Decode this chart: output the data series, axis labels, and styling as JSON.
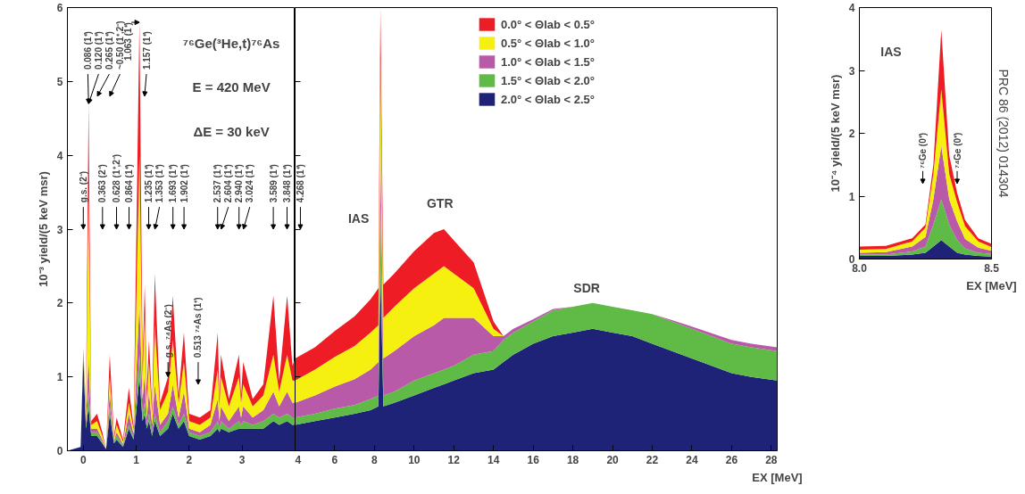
{
  "chart_data": [
    {
      "type": "area",
      "stacked": true,
      "ylabel": "10⁻³ yield/(5 keV msr)",
      "xlim": [
        -0.3,
        4
      ],
      "xticks": [
        0,
        1,
        2,
        3
      ],
      "ylim": [
        0,
        6
      ],
      "yticks": [
        0,
        1,
        2,
        3,
        4,
        5,
        6
      ],
      "x": [
        -0.3,
        -0.05,
        0,
        0.05,
        0.1,
        0.15,
        0.26,
        0.36,
        0.43,
        0.5,
        0.58,
        0.63,
        0.75,
        0.86,
        0.95,
        1.06,
        1.12,
        1.16,
        1.2,
        1.24,
        1.3,
        1.35,
        1.45,
        1.6,
        1.69,
        1.8,
        1.9,
        2.0,
        2.2,
        2.4,
        2.54,
        2.57,
        2.6,
        2.75,
        2.94,
        2.98,
        3.02,
        3.2,
        3.4,
        3.59,
        3.7,
        3.85,
        3.95,
        4.0
      ],
      "series": [
        {
          "color": "#1e2378",
          "values": [
            0,
            0.05,
            1.3,
            0.3,
            0.6,
            0.2,
            0.2,
            0.1,
            0.02,
            0.5,
            0.1,
            0.15,
            0.05,
            0.3,
            0.15,
            1.0,
            0.4,
            0.5,
            0.3,
            0.4,
            0.2,
            0.4,
            0.2,
            0.3,
            0.5,
            0.3,
            0.4,
            0.2,
            0.15,
            0.2,
            0.3,
            0.25,
            0.3,
            0.25,
            0.3,
            0.3,
            0.3,
            0.3,
            0.3,
            0.4,
            0.35,
            0.4,
            0.35,
            0.35
          ]
        },
        {
          "color": "#5fba46",
          "values": [
            0,
            0,
            0.1,
            0.05,
            0.2,
            0.05,
            0.05,
            0.02,
            0,
            0.1,
            0.02,
            0.05,
            0.02,
            0.05,
            0.03,
            0.3,
            0.1,
            0.15,
            0.05,
            0.1,
            0.05,
            0.1,
            0.05,
            0.1,
            0.1,
            0.05,
            0.1,
            0.05,
            0.05,
            0.05,
            0.1,
            0.05,
            0.1,
            0.05,
            0.1,
            0.05,
            0.1,
            0.05,
            0.1,
            0.1,
            0.1,
            0.1,
            0.1,
            0.1
          ]
        },
        {
          "color": "#b85aa8",
          "values": [
            0,
            0,
            0,
            0.05,
            0.5,
            0.05,
            0.05,
            0.03,
            0,
            0.2,
            0.02,
            0.05,
            0.02,
            0.15,
            0.05,
            0.7,
            0.2,
            0.4,
            0.1,
            0.3,
            0.1,
            0.4,
            0.1,
            0.1,
            0.3,
            0.1,
            0.3,
            0.05,
            0.05,
            0.1,
            0.3,
            0.1,
            0.2,
            0.1,
            0.2,
            0.1,
            0.2,
            0.1,
            0.15,
            0.3,
            0.15,
            0.3,
            0.2,
            0.2
          ]
        },
        {
          "color": "#f5f00f",
          "values": [
            0,
            0,
            0,
            0.1,
            2.2,
            0.05,
            0.1,
            0.05,
            0,
            0.2,
            0.03,
            0.1,
            0.03,
            0.15,
            0.05,
            2.0,
            0.3,
            0.8,
            0.2,
            0.4,
            0.15,
            0.8,
            0.2,
            0.3,
            0.6,
            0.2,
            0.4,
            0.1,
            0.1,
            0.1,
            0.4,
            0.2,
            0.4,
            0.2,
            0.4,
            0.2,
            0.3,
            0.15,
            0.2,
            0.5,
            0.2,
            0.5,
            0.3,
            0.3
          ]
        },
        {
          "color": "#ee1c24",
          "values": [
            0,
            0,
            0,
            0.1,
            1.2,
            0.05,
            0.1,
            0.05,
            0,
            0.3,
            0.03,
            0.1,
            0.03,
            0.2,
            0.05,
            1.8,
            0.2,
            0.4,
            0.2,
            0.3,
            0.1,
            0.7,
            0.1,
            0.2,
            0.6,
            0.1,
            0.4,
            0.1,
            0.1,
            0.1,
            0.5,
            0.1,
            0.3,
            0.1,
            0.3,
            0.1,
            0.3,
            0.1,
            0.15,
            0.8,
            0.15,
            0.8,
            0.2,
            0.3
          ]
        }
      ],
      "annotations": [
        "g.s. (2⁻)",
        {
          "text": "0.086 (1⁺)",
          "x": 0.1,
          "y": 4.7
        },
        {
          "text": "0.120 (1⁺)",
          "x": 0.1,
          "y": 4.7
        },
        "0.265 (1⁺)",
        "0.363 (2⁻)",
        "~0.50 (1⁺,2⁻)",
        "0.628 (1⁺,2⁻)",
        "0.864 (1⁺)",
        {
          "text": "1.063 (1⁺)",
          "x": 1.06,
          "y": 5.8
        },
        "1.157 (1⁺)",
        "1.235 (1⁺)",
        "1.353 (1⁺)",
        "1.693 (1⁺)",
        "1.902 (1⁺)",
        "2.537 (1⁺)",
        "2.604 (1⁺)",
        "2.940 (1⁺)",
        "3.024 (1⁺)",
        "3.589 (1⁺)",
        "3.848 (1⁺)",
        {
          "text": "g.s. ⁷⁴As (2⁻)",
          "x": 1.6,
          "y": 1.0
        },
        "0.513 ⁷⁴As (1⁺)",
        "⁷⁶Ge(³He,t)⁷⁶As",
        "E = 420 MeV",
        "ΔE = 30 keV"
      ]
    },
    {
      "type": "area",
      "stacked": true,
      "xlabel": "EX [MeV]",
      "xlim": [
        4,
        28.3
      ],
      "xticks": [
        4,
        6,
        8,
        10,
        12,
        14,
        16,
        18,
        20,
        22,
        24,
        26,
        28
      ],
      "ylim": [
        0,
        6
      ],
      "yticks": [
        0,
        1,
        2,
        3,
        4,
        5,
        6
      ],
      "tick_labels": "x",
      "legend": "top",
      "x": [
        4,
        5,
        6,
        7,
        7.8,
        8.2,
        8.3,
        8.45,
        9,
        10,
        11,
        11.5,
        12,
        13,
        14,
        14.5,
        15,
        16,
        17,
        18,
        19,
        20,
        21,
        22,
        23,
        24,
        25,
        26,
        27,
        28.3
      ],
      "series": [
        {
          "name": "2.0° < Θlab < 2.5°",
          "color": "#1e2378",
          "values": [
            0.35,
            0.4,
            0.45,
            0.5,
            0.55,
            0.6,
            2.5,
            0.6,
            0.65,
            0.75,
            0.85,
            0.9,
            0.95,
            1.05,
            1.1,
            1.2,
            1.3,
            1.45,
            1.55,
            1.6,
            1.65,
            1.6,
            1.55,
            1.45,
            1.35,
            1.25,
            1.15,
            1.05,
            1.0,
            0.95
          ]
        },
        {
          "name": "1.5° < Θlab < 2.0°",
          "color": "#5fba46",
          "values": [
            0.1,
            0.1,
            0.12,
            0.12,
            0.15,
            0.15,
            0.8,
            0.15,
            0.15,
            0.2,
            0.2,
            0.2,
            0.2,
            0.25,
            0.25,
            0.3,
            0.3,
            0.3,
            0.35,
            0.35,
            0.35,
            0.35,
            0.35,
            0.4,
            0.4,
            0.4,
            0.4,
            0.4,
            0.4,
            0.4
          ]
        },
        {
          "name": "1.0° < Θlab < 1.5°",
          "color": "#b85aa8",
          "values": [
            0.2,
            0.25,
            0.3,
            0.35,
            0.4,
            0.45,
            0.8,
            0.5,
            0.55,
            0.6,
            0.65,
            0.7,
            0.65,
            0.5,
            0.2,
            0.05,
            0.05,
            0.03,
            0.02,
            0,
            0,
            0,
            0,
            0,
            0.02,
            0.03,
            0.04,
            0.05,
            0.05,
            0.05
          ]
        },
        {
          "name": "0.5° < Θlab < 1.0°",
          "color": "#f5f00f",
          "values": [
            0.3,
            0.35,
            0.4,
            0.45,
            0.5,
            0.5,
            1.2,
            0.55,
            0.6,
            0.65,
            0.7,
            0.7,
            0.6,
            0.4,
            0.1,
            0,
            0,
            0,
            0,
            0,
            0,
            0,
            0,
            0,
            0,
            0,
            0,
            0,
            0,
            0
          ]
        },
        {
          "name": "0.0° < Θlab < 0.5°",
          "color": "#ee1c24",
          "values": [
            0.3,
            0.3,
            0.35,
            0.4,
            0.45,
            0.5,
            0.7,
            0.45,
            0.45,
            0.5,
            0.55,
            0.5,
            0.45,
            0.35,
            0.1,
            0,
            0,
            0,
            0,
            0,
            0,
            0,
            0,
            0,
            0,
            0,
            0,
            0,
            0,
            0
          ]
        }
      ],
      "annotations": [
        "4.268 (1⁺)",
        "IAS",
        "GTR",
        "SDR"
      ]
    },
    {
      "type": "area",
      "stacked": true,
      "xlabel": "EX [MeV]",
      "ylabel": "10⁻⁴ yield/(5 keV msr)",
      "xlim": [
        8.0,
        8.5
      ],
      "xticks": [
        {
          "value": 8,
          "label": "8.0"
        },
        8.5
      ],
      "ylim": [
        0,
        4
      ],
      "yticks": [
        0,
        1,
        2,
        3,
        4
      ],
      "x": [
        8.0,
        8.1,
        8.2,
        8.25,
        8.28,
        8.31,
        8.34,
        8.37,
        8.4,
        8.45,
        8.5
      ],
      "series": [
        {
          "color": "#1e2378",
          "values": [
            0.05,
            0.05,
            0.07,
            0.1,
            0.2,
            0.3,
            0.2,
            0.1,
            0.07,
            0.05,
            0.04
          ]
        },
        {
          "color": "#5fba46",
          "values": [
            0.02,
            0.02,
            0.05,
            0.1,
            0.35,
            0.65,
            0.35,
            0.2,
            0.1,
            0.05,
            0.04
          ]
        },
        {
          "color": "#b85aa8",
          "values": [
            0.03,
            0.04,
            0.08,
            0.15,
            0.4,
            0.85,
            0.4,
            0.3,
            0.15,
            0.08,
            0.05
          ]
        },
        {
          "color": "#f5f00f",
          "values": [
            0.05,
            0.05,
            0.08,
            0.15,
            0.4,
            0.9,
            0.4,
            0.3,
            0.2,
            0.1,
            0.06
          ]
        },
        {
          "color": "#ee1c24",
          "values": [
            0.05,
            0.05,
            0.05,
            0.05,
            0.15,
            0.95,
            0.3,
            0.15,
            0.1,
            0.05,
            0.05
          ]
        }
      ],
      "annotations": [
        "IAS",
        "⁷⁶Ge (0⁺)",
        "⁷⁴Ge (0⁺)",
        "PRC 86 (2012) 014304"
      ]
    }
  ]
}
